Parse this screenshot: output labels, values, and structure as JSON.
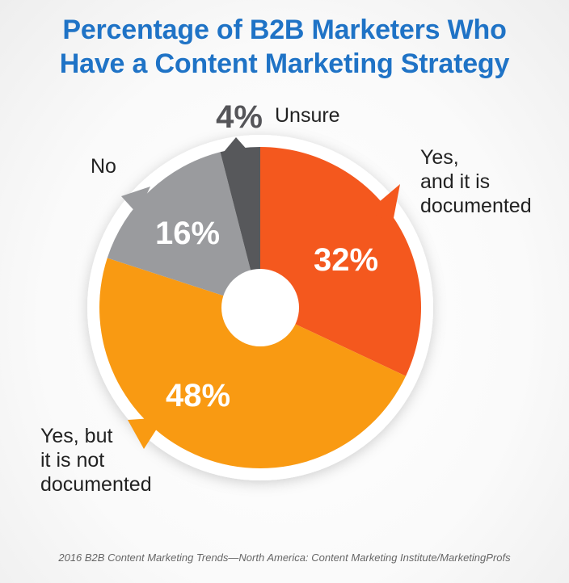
{
  "chart_data": {
    "type": "pie",
    "title_lines": [
      "Percentage of B2B Marketers Who",
      "Have a Content Marketing Strategy"
    ],
    "source": "2016 B2B Content Marketing Trends—North America: Content Marketing Institute/MarketingProfs",
    "slices": [
      {
        "label_lines": [
          "Yes,",
          "and it is",
          "documented"
        ],
        "value": 32,
        "display": "32%",
        "color": "#f4581e"
      },
      {
        "label_lines": [
          "Yes, but",
          "it is not",
          "documented"
        ],
        "value": 48,
        "display": "48%",
        "color": "#f99a12"
      },
      {
        "label_lines": [
          "No"
        ],
        "value": 16,
        "display": "16%",
        "color": "#9a9b9e"
      },
      {
        "label_lines": [
          "Unsure"
        ],
        "value": 4,
        "display": "4%",
        "color": "#57585b"
      }
    ],
    "colors": {
      "title": "#1f73c6",
      "center_hole": "#ffffff"
    }
  }
}
